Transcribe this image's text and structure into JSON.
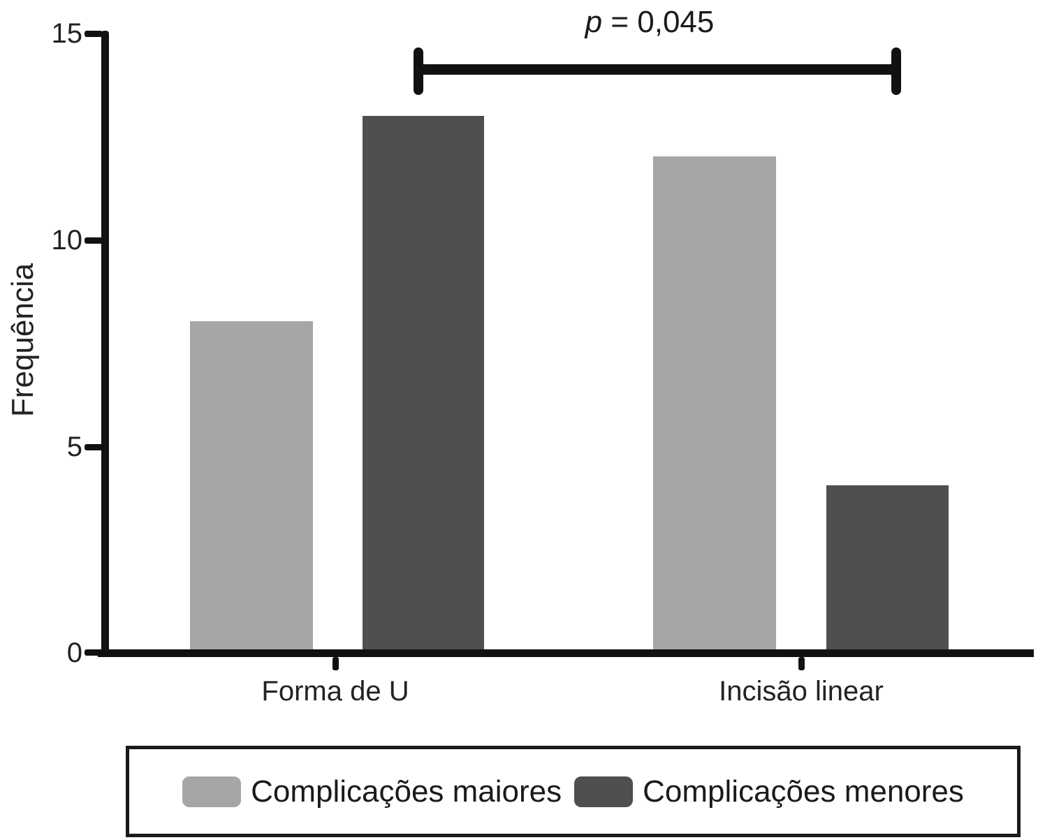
{
  "chart_data": {
    "type": "bar",
    "title": "",
    "categories": [
      "Forma de U",
      "Incisão linear"
    ],
    "series": [
      {
        "name": "Complicações maiores",
        "color": "#a6a6a6",
        "values": [
          8,
          12
        ]
      },
      {
        "name": "Complicações menores",
        "color": "#4f4f4f",
        "values": [
          13,
          4
        ]
      }
    ],
    "ylabel": "Frequência",
    "ylim": [
      0,
      15
    ],
    "yticks": [
      0,
      5,
      10,
      15
    ],
    "grid": false,
    "legend_position": "bottom",
    "annotation": {
      "text": "p = 0,045",
      "spans_between": [
        "Forma de U",
        "Incisão linear"
      ]
    }
  },
  "axis": {
    "y_title": "Frequência",
    "ytick_labels": [
      "15",
      "10",
      "5",
      "0"
    ]
  },
  "annotation": {
    "p_var": "p",
    "p_rest": " = 0,045"
  }
}
